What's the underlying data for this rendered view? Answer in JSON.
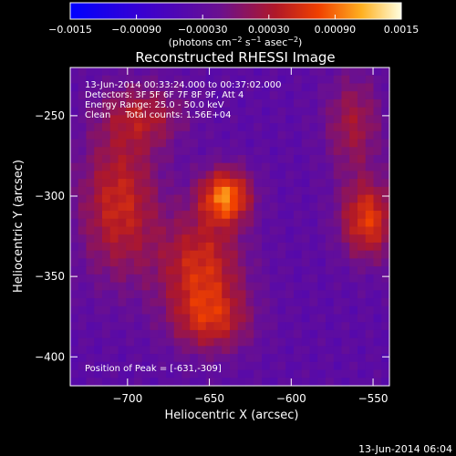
{
  "chart_data": {
    "type": "heatmap",
    "title": "Reconstructed RHESSI Image",
    "xlabel": "Heliocentric X (arcsec)",
    "ylabel": "Heliocentric Y (arcsec)",
    "xlim": [
      -735,
      -540
    ],
    "ylim": [
      -418,
      -220
    ],
    "x_ticks": [
      {
        "value": -700,
        "label": "−700"
      },
      {
        "value": -650,
        "label": "−650"
      },
      {
        "value": -600,
        "label": "−600"
      },
      {
        "value": -550,
        "label": "−550"
      }
    ],
    "y_ticks": [
      {
        "value": -250,
        "label": "−250"
      },
      {
        "value": -300,
        "label": "−300"
      },
      {
        "value": -350,
        "label": "−350"
      },
      {
        "value": -400,
        "label": "−400"
      }
    ],
    "colorbar": {
      "range": [
        -0.0015,
        0.0015
      ],
      "ticks": [
        {
          "value": -0.0015,
          "label": "−0.0015"
        },
        {
          "value": -0.0009,
          "label": "−0.00090"
        },
        {
          "value": -0.0003,
          "label": "−0.00030"
        },
        {
          "value": 0.0003,
          "label": "0.00030"
        },
        {
          "value": 0.0009,
          "label": "0.00090"
        },
        {
          "value": 0.0015,
          "label": "0.0015"
        }
      ],
      "unit_parts": [
        "(photons cm",
        "−2",
        " s",
        "−1",
        " asec",
        "−2",
        ")"
      ]
    },
    "peak": [
      -631,
      -309
    ],
    "sources": [
      {
        "x": -640,
        "y": -300,
        "sx": 11,
        "sy": 12,
        "amp": 0.00125
      },
      {
        "x": -705,
        "y": -305,
        "sx": 17,
        "sy": 32,
        "amp": 0.00085
      },
      {
        "x": -655,
        "y": -345,
        "sx": 18,
        "sy": 24,
        "amp": 0.0009
      },
      {
        "x": -648,
        "y": -378,
        "sx": 17,
        "sy": 14,
        "amp": 0.00065
      },
      {
        "x": -562,
        "y": -255,
        "sx": 12,
        "sy": 22,
        "amp": 0.0006
      },
      {
        "x": -553,
        "y": -315,
        "sx": 12,
        "sy": 17,
        "amp": 0.001
      },
      {
        "x": -690,
        "y": -250,
        "sx": 18,
        "sy": 14,
        "amp": 0.0006
      }
    ],
    "background_level": -0.00035
  },
  "info": {
    "line1": "13-Jun-2014 00:33:24.000 to 00:37:02.000",
    "line2": "Detectors: 3F 5F 6F 7F 8F 9F, Att 4",
    "line3": "Energy Range: 25.0 - 50.0 keV",
    "line4": "Clean     Total counts: 1.56E+04",
    "peak_label": "Position of Peak = [-631,-309]"
  },
  "footer": {
    "timestamp": "13-Jun-2014 06:04"
  }
}
